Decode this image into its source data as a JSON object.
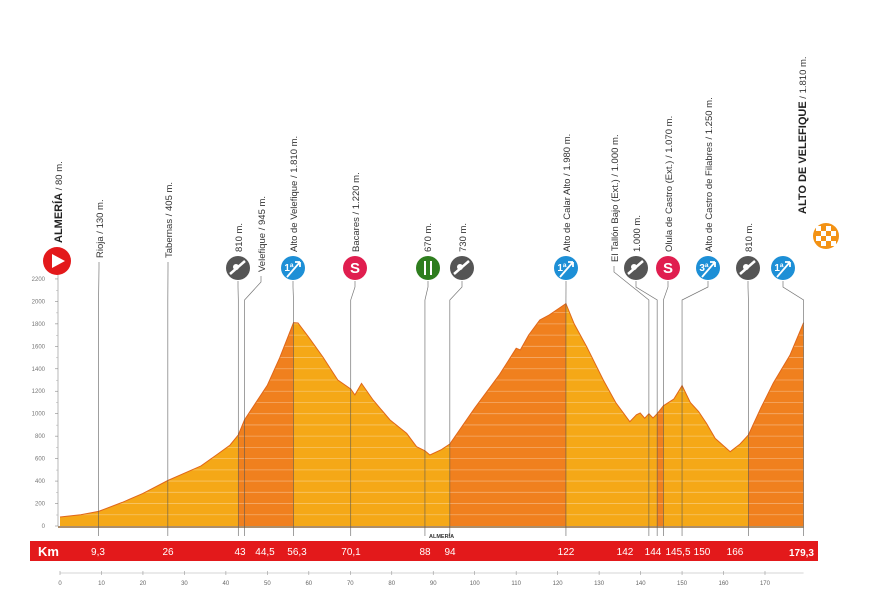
{
  "chart_data": {
    "type": "area",
    "title": "",
    "xlabel": "Km",
    "ylabel": "",
    "xlim": [
      0,
      179.3
    ],
    "ylim": [
      0,
      2200
    ],
    "y_ticks": [
      "0",
      "200",
      "400",
      "600",
      "800",
      "1000",
      "1200",
      "1400",
      "1600",
      "1800",
      "2000",
      "2200"
    ],
    "x_ticks": [
      "0",
      "10",
      "20",
      "30",
      "40",
      "50",
      "60",
      "70",
      "80",
      "90",
      "100",
      "110",
      "120",
      "130",
      "140",
      "150",
      "160",
      "170"
    ],
    "grid": "horizontal stripes every 100 m",
    "profile": [
      [
        0,
        80
      ],
      [
        5,
        100
      ],
      [
        9.3,
        130
      ],
      [
        15,
        210
      ],
      [
        20,
        290
      ],
      [
        26,
        405
      ],
      [
        30,
        470
      ],
      [
        34,
        535
      ],
      [
        38,
        640
      ],
      [
        41,
        720
      ],
      [
        43,
        810
      ],
      [
        44.5,
        945
      ],
      [
        46,
        1030
      ],
      [
        50,
        1255
      ],
      [
        53,
        1500
      ],
      [
        56.3,
        1810
      ],
      [
        57.4,
        1808
      ],
      [
        60,
        1680
      ],
      [
        63.4,
        1505
      ],
      [
        67,
        1300
      ],
      [
        70.1,
        1220
      ],
      [
        71.1,
        1167
      ],
      [
        72.7,
        1270
      ],
      [
        75.5,
        1122
      ],
      [
        79.6,
        944
      ],
      [
        83.6,
        825
      ],
      [
        86,
        706
      ],
      [
        88,
        670
      ],
      [
        89.2,
        632
      ],
      [
        92,
        680
      ],
      [
        94,
        730
      ],
      [
        100,
        1050
      ],
      [
        106,
        1350
      ],
      [
        110,
        1582
      ],
      [
        111,
        1567
      ],
      [
        113,
        1700
      ],
      [
        115.7,
        1834
      ],
      [
        118,
        1880
      ],
      [
        122,
        1980
      ],
      [
        124,
        1800
      ],
      [
        127,
        1597
      ],
      [
        131,
        1300
      ],
      [
        134,
        1100
      ],
      [
        137.4,
        929
      ],
      [
        139,
        990
      ],
      [
        139.9,
        1006
      ],
      [
        141,
        960
      ],
      [
        142,
        1000
      ],
      [
        143,
        962
      ],
      [
        144,
        1000
      ],
      [
        145.5,
        1070
      ],
      [
        148,
        1130
      ],
      [
        150,
        1250
      ],
      [
        152,
        1100
      ],
      [
        154,
        1020
      ],
      [
        155.9,
        914
      ],
      [
        158,
        780
      ],
      [
        161.6,
        662
      ],
      [
        164,
        730
      ],
      [
        166,
        810
      ],
      [
        169,
        1050
      ],
      [
        172,
        1273
      ],
      [
        176,
        1520
      ],
      [
        179.3,
        1810
      ]
    ],
    "climb_sections": [
      [
        43,
        56.3
      ],
      [
        94,
        122
      ],
      [
        144,
        145.5
      ],
      [
        166,
        179.3
      ]
    ],
    "colors": {
      "profile_main": "#f5a817",
      "profile_climb": "#f0801e",
      "km_bar": "#e3191b",
      "sprint": "#e01e4f",
      "climb_marker": "#1d8fd6",
      "feed": "#2e7d1e",
      "cb_marker": "#555555",
      "start": "#e3191b",
      "finish": "#f39214"
    },
    "area_label": "ALMERÍA",
    "area_label_km": 92,
    "km_bar_title": "Km",
    "waypoints": [
      {
        "km": 0,
        "km_label": "",
        "bold": "ALMERÍA",
        "label": " / 80 m.",
        "icon": "start-icon"
      },
      {
        "km": 9.3,
        "km_label": "9,3",
        "bold": "",
        "label": "Rioja / 130 m.",
        "icon": ""
      },
      {
        "km": 26,
        "km_label": "26",
        "bold": "",
        "label": "Tabernas / 405 m.",
        "icon": ""
      },
      {
        "km": 43,
        "km_label": "43",
        "bold": "",
        "label": "810 m.",
        "icon": "cb-icon"
      },
      {
        "km": 44.5,
        "km_label": "44,5",
        "bold": "",
        "label": "Velefique / 945 m.",
        "icon": ""
      },
      {
        "km": 56.3,
        "km_label": "56,3",
        "bold": "",
        "label": "Alto de Velefique / 1.810 m.",
        "icon": "climb-1a-icon"
      },
      {
        "km": 70.1,
        "km_label": "70,1",
        "bold": "",
        "label": "Bacares / 1.220 m.",
        "icon": "sprint-icon"
      },
      {
        "km": 88,
        "km_label": "88",
        "bold": "",
        "label": "670 m.",
        "icon": "feed-zone-icon"
      },
      {
        "km": 94,
        "km_label": "94",
        "bold": "",
        "label": "730 m.",
        "icon": "cb-icon"
      },
      {
        "km": 122,
        "km_label": "122",
        "bold": "",
        "label": "Alto de Calar Alto / 1.980 m.",
        "icon": "climb-1a-icon"
      },
      {
        "km": 142,
        "km_label": "142",
        "bold": "",
        "label": "El Tallón Bajo (Ext.) / 1.000 m.",
        "icon": ""
      },
      {
        "km": 144,
        "km_label": "144",
        "bold": "",
        "label": "1.000 m.",
        "icon": "cb-icon"
      },
      {
        "km": 145.5,
        "km_label": "145,5",
        "bold": "",
        "label": "Olula de Castro (Ext.) / 1.070 m.",
        "icon": "sprint-icon"
      },
      {
        "km": 150,
        "km_label": "150",
        "bold": "",
        "label": "Alto de Castro de Filabres / 1.250 m.",
        "icon": "climb-3a-icon"
      },
      {
        "km": 166,
        "km_label": "166",
        "bold": "",
        "label": "810 m.",
        "icon": "cb-icon"
      },
      {
        "km": 179.3,
        "km_label": "179,3",
        "bold": "ALTO DE VELEFIQUE",
        "label": " / 1.810 m.",
        "icon": "climb-1a-icon"
      }
    ],
    "icon_text": {
      "sprint": "S",
      "climb_1a": "1ª",
      "climb_3a": "3ª"
    }
  }
}
